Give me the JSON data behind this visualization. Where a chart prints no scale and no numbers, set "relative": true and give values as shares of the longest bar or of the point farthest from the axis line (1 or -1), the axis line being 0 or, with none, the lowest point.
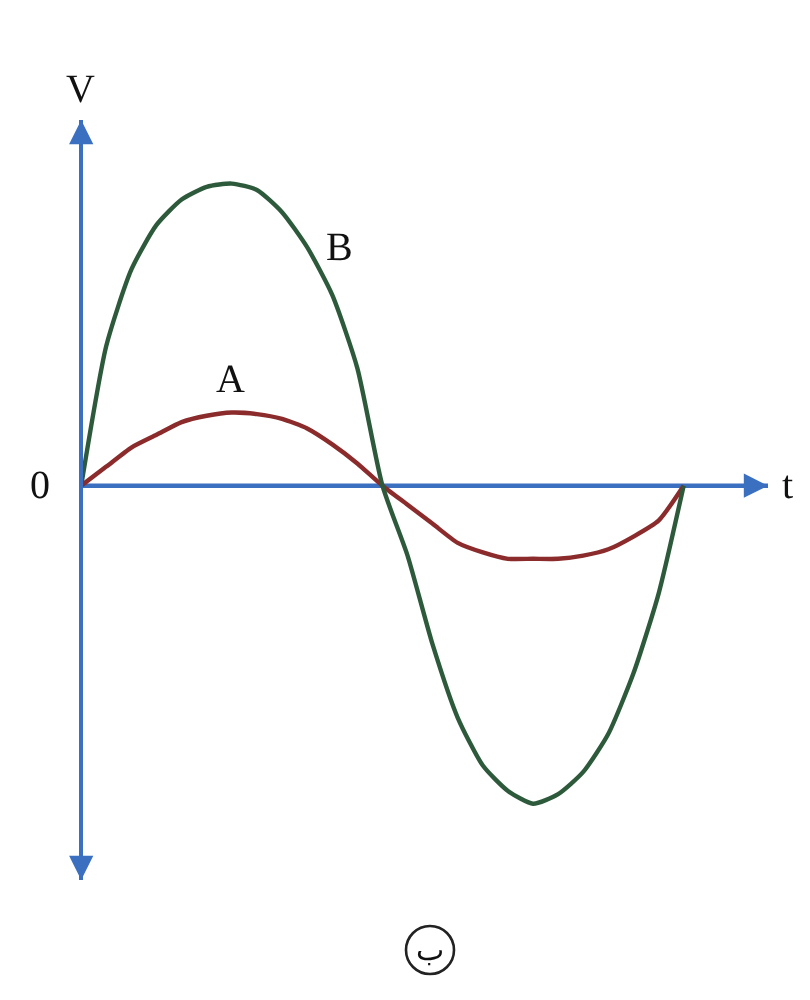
{
  "chart_data": {
    "type": "line",
    "relative": true,
    "xlabel": "t",
    "ylabel": "V",
    "categories": [
      null,
      null,
      null,
      null,
      null,
      null,
      null,
      null,
      null,
      null,
      null,
      null,
      null,
      null,
      null,
      null,
      null,
      null,
      null,
      null,
      null,
      null,
      null,
      null,
      null
    ],
    "series": [
      {
        "name": "A",
        "color": "#8b2b2b",
        "values": [
          0,
          0.06,
          0.12,
          0.16,
          0.2,
          0.22,
          0.23,
          0.225,
          0.21,
          0.18,
          0.13,
          0.07,
          0,
          -0.06,
          -0.12,
          -0.18,
          -0.21,
          -0.23,
          -0.23,
          -0.23,
          -0.22,
          -0.2,
          -0.16,
          -0.11,
          0
        ]
      },
      {
        "name": "B",
        "color": "#2e5a3c",
        "values": [
          0,
          0.44,
          0.68,
          0.82,
          0.9,
          0.94,
          0.95,
          0.93,
          0.86,
          0.75,
          0.6,
          0.37,
          0,
          -0.22,
          -0.5,
          -0.73,
          -0.88,
          -0.96,
          -1,
          -0.97,
          -0.9,
          -0.78,
          -0.59,
          -0.34,
          0
        ]
      }
    ],
    "ref_lines": [
      {
        "axis": "y",
        "value": 0,
        "color": "#3b6fc0"
      }
    ],
    "annotations": [
      "0",
      "ب"
    ]
  }
}
